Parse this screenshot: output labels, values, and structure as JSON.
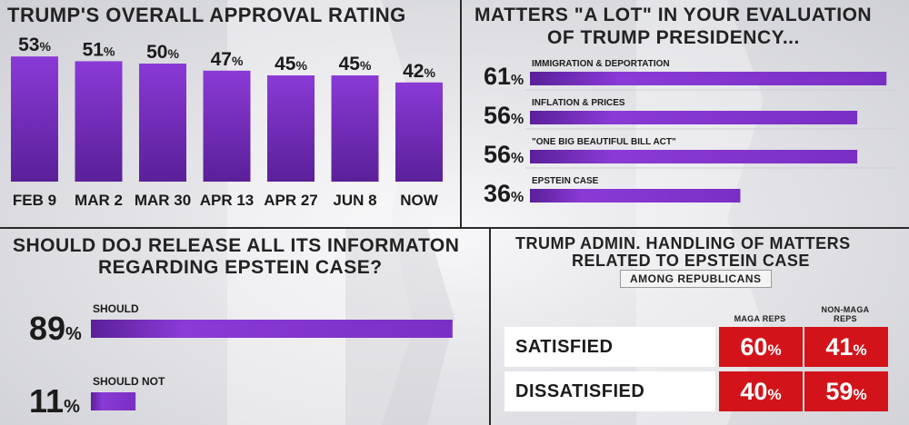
{
  "colors": {
    "bar": "#7a2fc4",
    "bar_dark": "#4f1d8c",
    "red": "#d2141a",
    "divider": "#2a2a2a"
  },
  "chart_data": [
    {
      "type": "bar",
      "title": "TRUMP'S OVERALL APPROVAL RATING",
      "categories": [
        "FEB 9",
        "MAR 2",
        "MAR 30",
        "APR 13",
        "APR 27",
        "JUN 8",
        "NOW"
      ],
      "values": [
        53,
        51,
        50,
        47,
        45,
        45,
        42
      ],
      "value_labels": [
        "53",
        "51",
        "50",
        "47",
        "45",
        "45",
        "42"
      ],
      "unit": "%"
    },
    {
      "type": "bar",
      "title_lines": [
        "MATTERS \"A LOT\" IN YOUR EVALUATION",
        "OF TRUMP PRESIDENCY..."
      ],
      "orientation": "horizontal",
      "categories": [
        "IMMIGRATION & DEPORTATION",
        "INFLATION & PRICES",
        "\"ONE BIG BEAUTIFUL BILL ACT\"",
        "EPSTEIN CASE"
      ],
      "values": [
        61,
        56,
        56,
        36
      ],
      "value_labels": [
        "61",
        "56",
        "56",
        "36"
      ],
      "unit": "%"
    },
    {
      "type": "bar",
      "title_lines": [
        "SHOULD DOJ RELEASE ALL ITS INFORMATON",
        "REGARDING EPSTEIN CASE?"
      ],
      "orientation": "horizontal",
      "categories": [
        "SHOULD",
        "SHOULD NOT"
      ],
      "values": [
        89,
        11
      ],
      "value_labels": [
        "89",
        "11"
      ],
      "unit": "%"
    },
    {
      "type": "table",
      "title_lines": [
        "TRUMP ADMIN. HANDLING OF MATTERS",
        "RELATED TO EPSTEIN CASE"
      ],
      "subtitle": "AMONG REPUBLICANS",
      "columns": [
        "MAGA REPS",
        "NON-MAGA REPS"
      ],
      "column_lines": [
        [
          "MAGA REPS"
        ],
        [
          "NON-MAGA",
          "REPS"
        ]
      ],
      "rows": [
        {
          "label": "SATISFIED",
          "values": [
            60,
            41
          ],
          "value_labels": [
            "60",
            "41"
          ]
        },
        {
          "label": "DISSATISFIED",
          "values": [
            40,
            59
          ],
          "value_labels": [
            "40",
            "59"
          ]
        }
      ],
      "unit": "%"
    }
  ]
}
